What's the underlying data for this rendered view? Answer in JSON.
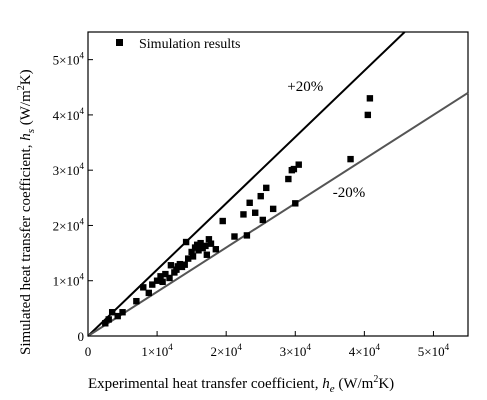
{
  "chart_data": {
    "type": "scatter",
    "title": "",
    "xlabel": "Experimental heat transfer coefficient, h_e (W/m²K)",
    "ylabel": "Simulated heat transfer coefficient, h_s (W/m²K)",
    "xlim": [
      0,
      55000
    ],
    "ylim": [
      0,
      55000
    ],
    "xticks": [
      {
        "value": 0,
        "mant": "0",
        "exp": ""
      },
      {
        "value": 10000,
        "mant": "1×10",
        "exp": "4"
      },
      {
        "value": 20000,
        "mant": "2×10",
        "exp": "4"
      },
      {
        "value": 30000,
        "mant": "3×10",
        "exp": "4"
      },
      {
        "value": 40000,
        "mant": "4×10",
        "exp": "4"
      },
      {
        "value": 50000,
        "mant": "5×10",
        "exp": "4"
      }
    ],
    "yticks": [
      {
        "value": 0,
        "mant": "0",
        "exp": ""
      },
      {
        "value": 10000,
        "mant": "1×10",
        "exp": "4"
      },
      {
        "value": 20000,
        "mant": "2×10",
        "exp": "4"
      },
      {
        "value": 30000,
        "mant": "3×10",
        "exp": "4"
      },
      {
        "value": 40000,
        "mant": "4×10",
        "exp": "4"
      },
      {
        "value": 50000,
        "mant": "5×10",
        "exp": "4"
      }
    ],
    "grid": false,
    "legend_position": "top-left",
    "series": [
      {
        "name": "Simulation results",
        "marker": "square",
        "color": "#000000",
        "points": [
          [
            2500,
            2300
          ],
          [
            3000,
            3000
          ],
          [
            3500,
            4300
          ],
          [
            4300,
            3600
          ],
          [
            5000,
            4300
          ],
          [
            7000,
            6300
          ],
          [
            8000,
            8800
          ],
          [
            8800,
            7800
          ],
          [
            9300,
            9300
          ],
          [
            10000,
            10000
          ],
          [
            10500,
            10800
          ],
          [
            10800,
            9800
          ],
          [
            11200,
            11200
          ],
          [
            11800,
            10500
          ],
          [
            12000,
            12800
          ],
          [
            12500,
            11500
          ],
          [
            12800,
            12000
          ],
          [
            13000,
            12600
          ],
          [
            13300,
            13000
          ],
          [
            13600,
            12500
          ],
          [
            14000,
            12900
          ],
          [
            14200,
            17000
          ],
          [
            14500,
            14000
          ],
          [
            15000,
            15200
          ],
          [
            15200,
            14400
          ],
          [
            15500,
            16000
          ],
          [
            15800,
            16500
          ],
          [
            16000,
            15500
          ],
          [
            16300,
            16800
          ],
          [
            16600,
            15900
          ],
          [
            17000,
            16300
          ],
          [
            17200,
            14700
          ],
          [
            17500,
            17500
          ],
          [
            17800,
            16700
          ],
          [
            18500,
            15700
          ],
          [
            19500,
            20800
          ],
          [
            21200,
            18000
          ],
          [
            22500,
            22000
          ],
          [
            23000,
            18200
          ],
          [
            23400,
            24100
          ],
          [
            24200,
            22300
          ],
          [
            25000,
            25300
          ],
          [
            25300,
            21000
          ],
          [
            25800,
            26800
          ],
          [
            26800,
            23000
          ],
          [
            29000,
            28400
          ],
          [
            29500,
            30000
          ],
          [
            29800,
            30200
          ],
          [
            30000,
            24000
          ],
          [
            30500,
            31000
          ],
          [
            38000,
            32000
          ],
          [
            40500,
            40000
          ],
          [
            40800,
            43000
          ]
        ]
      }
    ],
    "reference_lines": [
      {
        "label": "+20%",
        "slope": 1.2,
        "color": "#000000",
        "width": 2
      },
      {
        "label": "-20%",
        "slope": 0.8,
        "color": "#555555",
        "width": 2
      }
    ]
  }
}
